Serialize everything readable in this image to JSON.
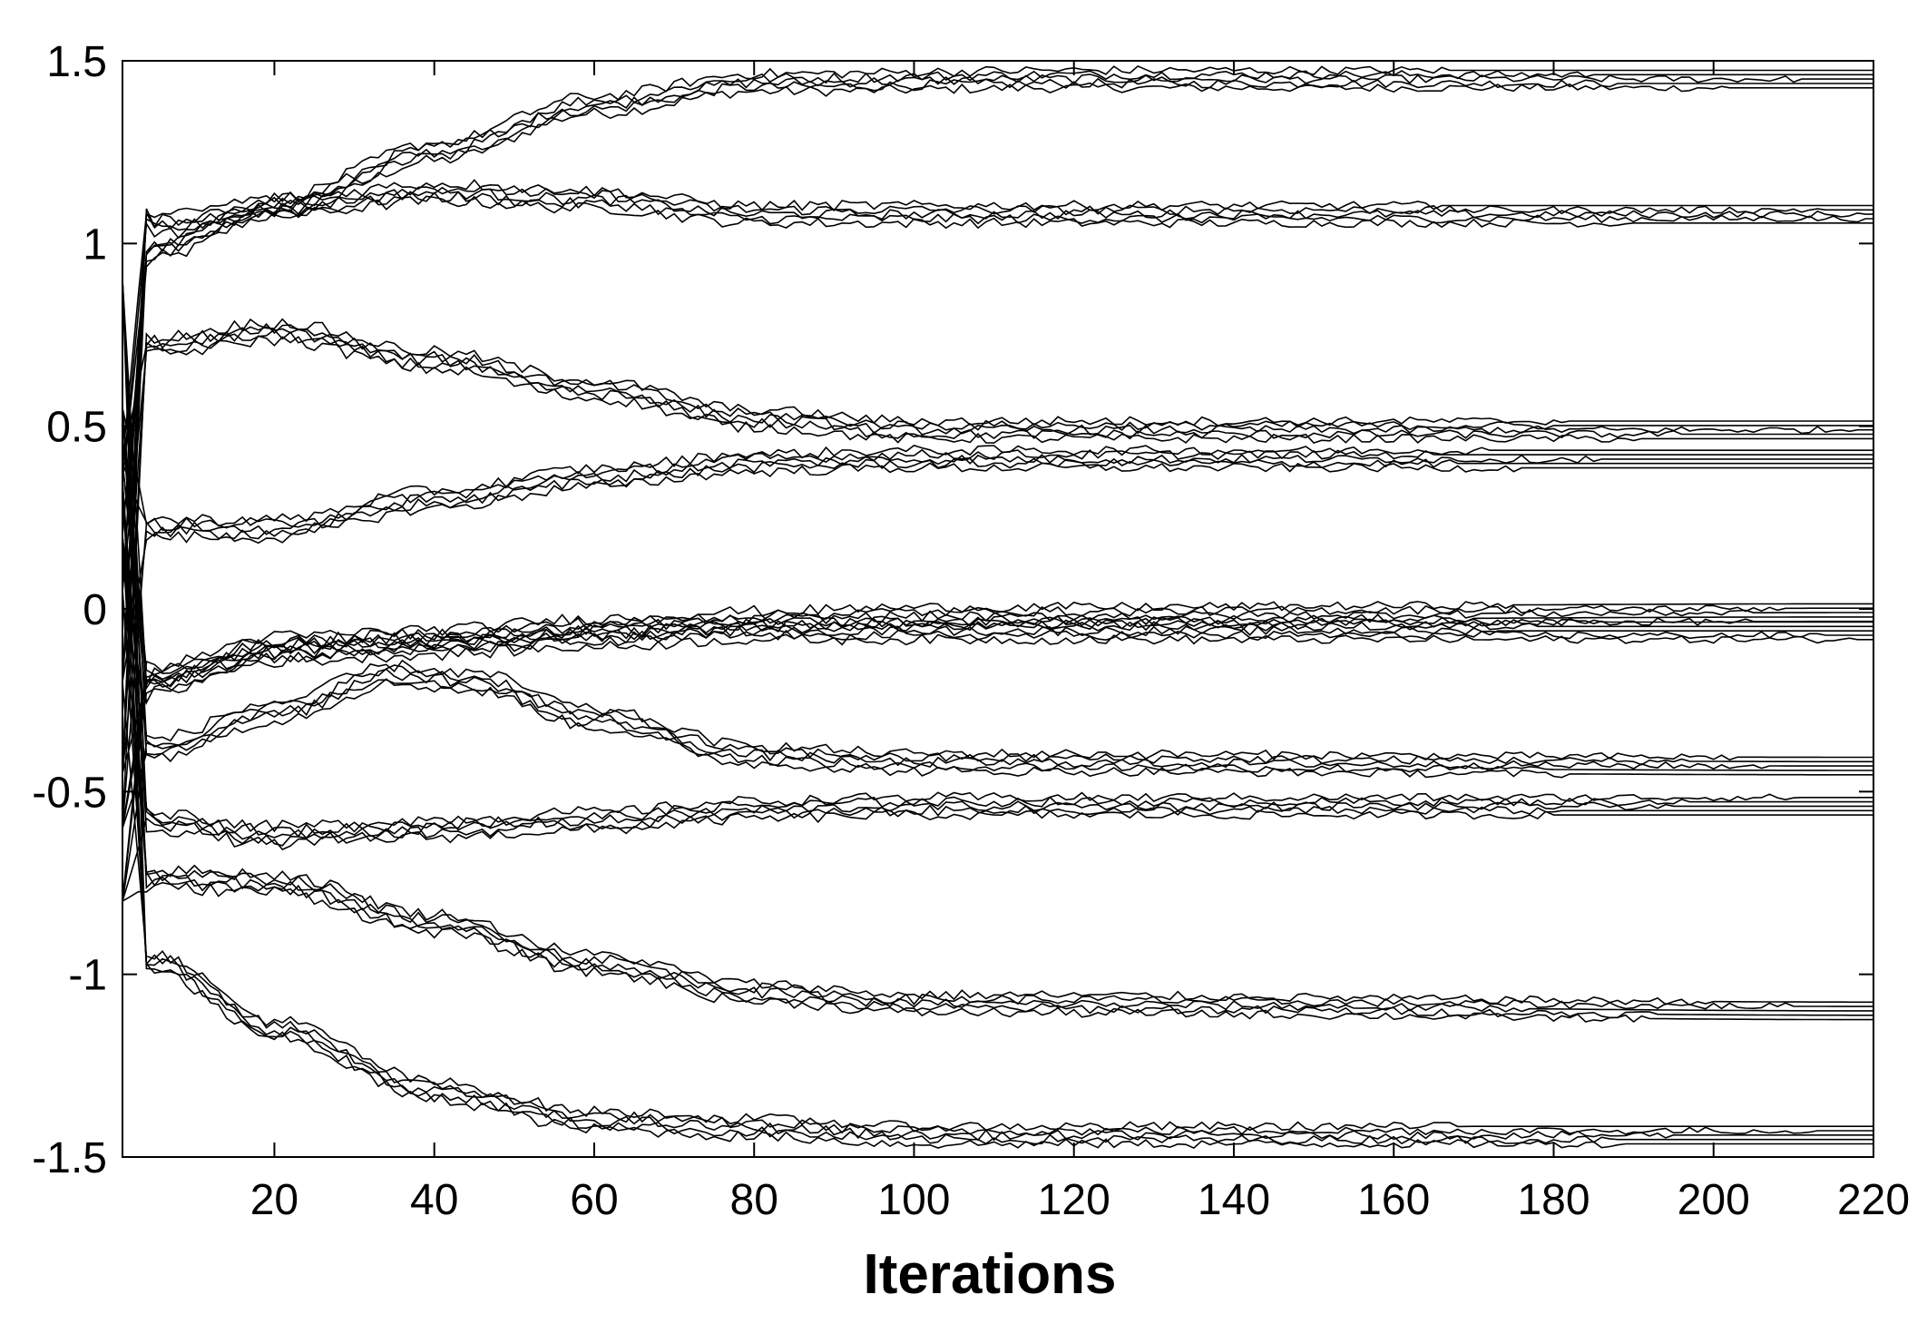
{
  "chart_data": {
    "type": "line",
    "title": "",
    "xlabel": "Iterations",
    "ylabel": "",
    "xlim": [
      1,
      220
    ],
    "ylim": [
      -1.5,
      1.5
    ],
    "x_ticks": [
      20,
      40,
      60,
      80,
      100,
      120,
      140,
      160,
      180,
      200,
      220
    ],
    "y_ticks": [
      1.5,
      1,
      0.5,
      0,
      -0.5,
      -1,
      -1.5
    ],
    "x_tick_labels": [
      "20",
      "40",
      "60",
      "80",
      "100",
      "120",
      "140",
      "160",
      "180",
      "200",
      "220"
    ],
    "y_tick_labels": [
      "1.5",
      "1",
      "0.5",
      "0",
      "-0.5",
      "-1",
      "-1.5"
    ],
    "grid": false,
    "line_color": "#000000",
    "series": [
      {
        "values_at": [
          [
            1,
            0.9
          ],
          [
            5,
            0.98
          ],
          [
            20,
            1.1
          ],
          [
            40,
            1.25
          ],
          [
            60,
            1.38
          ],
          [
            80,
            1.44
          ],
          [
            120,
            1.45
          ],
          [
            220,
            1.45
          ]
        ]
      },
      {
        "values_at": [
          [
            1,
            1.18
          ],
          [
            5,
            1.05
          ],
          [
            20,
            1.1
          ],
          [
            40,
            1.14
          ],
          [
            60,
            1.12
          ],
          [
            80,
            1.08
          ],
          [
            120,
            1.08
          ],
          [
            220,
            1.08
          ]
        ]
      },
      {
        "values_at": [
          [
            1,
            0.68
          ],
          [
            5,
            0.72
          ],
          [
            20,
            0.76
          ],
          [
            40,
            0.68
          ],
          [
            60,
            0.6
          ],
          [
            80,
            0.52
          ],
          [
            100,
            0.49
          ],
          [
            220,
            0.49
          ]
        ]
      },
      {
        "values_at": [
          [
            1,
            0.23
          ],
          [
            5,
            0.22
          ],
          [
            20,
            0.22
          ],
          [
            40,
            0.3
          ],
          [
            60,
            0.36
          ],
          [
            80,
            0.4
          ],
          [
            100,
            0.41
          ],
          [
            220,
            0.41
          ]
        ]
      },
      {
        "values_at": [
          [
            1,
            -0.2
          ],
          [
            5,
            -0.18
          ],
          [
            20,
            -0.1
          ],
          [
            40,
            -0.08
          ],
          [
            60,
            -0.05
          ],
          [
            80,
            -0.03
          ],
          [
            100,
            -0.02
          ],
          [
            220,
            -0.01
          ]
        ]
      },
      {
        "values_at": [
          [
            1,
            -0.35
          ],
          [
            5,
            -0.2
          ],
          [
            20,
            -0.12
          ],
          [
            40,
            -0.1
          ],
          [
            60,
            -0.08
          ],
          [
            80,
            -0.06
          ],
          [
            100,
            -0.06
          ],
          [
            220,
            -0.06
          ]
        ]
      },
      {
        "values_at": [
          [
            1,
            -0.35
          ],
          [
            5,
            -0.38
          ],
          [
            20,
            -0.28
          ],
          [
            35,
            -0.18
          ],
          [
            45,
            -0.2
          ],
          [
            60,
            -0.3
          ],
          [
            80,
            -0.4
          ],
          [
            100,
            -0.42
          ],
          [
            220,
            -0.43
          ]
        ]
      },
      {
        "values_at": [
          [
            1,
            -0.52
          ],
          [
            5,
            -0.58
          ],
          [
            20,
            -0.62
          ],
          [
            40,
            -0.6
          ],
          [
            60,
            -0.58
          ],
          [
            80,
            -0.55
          ],
          [
            100,
            -0.54
          ],
          [
            220,
            -0.54
          ]
        ]
      },
      {
        "values_at": [
          [
            1,
            -0.72
          ],
          [
            5,
            -0.74
          ],
          [
            20,
            -0.75
          ],
          [
            40,
            -0.86
          ],
          [
            60,
            -0.97
          ],
          [
            80,
            -1.05
          ],
          [
            100,
            -1.08
          ],
          [
            220,
            -1.1
          ]
        ]
      },
      {
        "values_at": [
          [
            1,
            -0.95
          ],
          [
            5,
            -0.97
          ],
          [
            20,
            -1.15
          ],
          [
            40,
            -1.32
          ],
          [
            60,
            -1.4
          ],
          [
            80,
            -1.42
          ],
          [
            100,
            -1.44
          ],
          [
            220,
            -1.44
          ]
        ]
      }
    ]
  }
}
